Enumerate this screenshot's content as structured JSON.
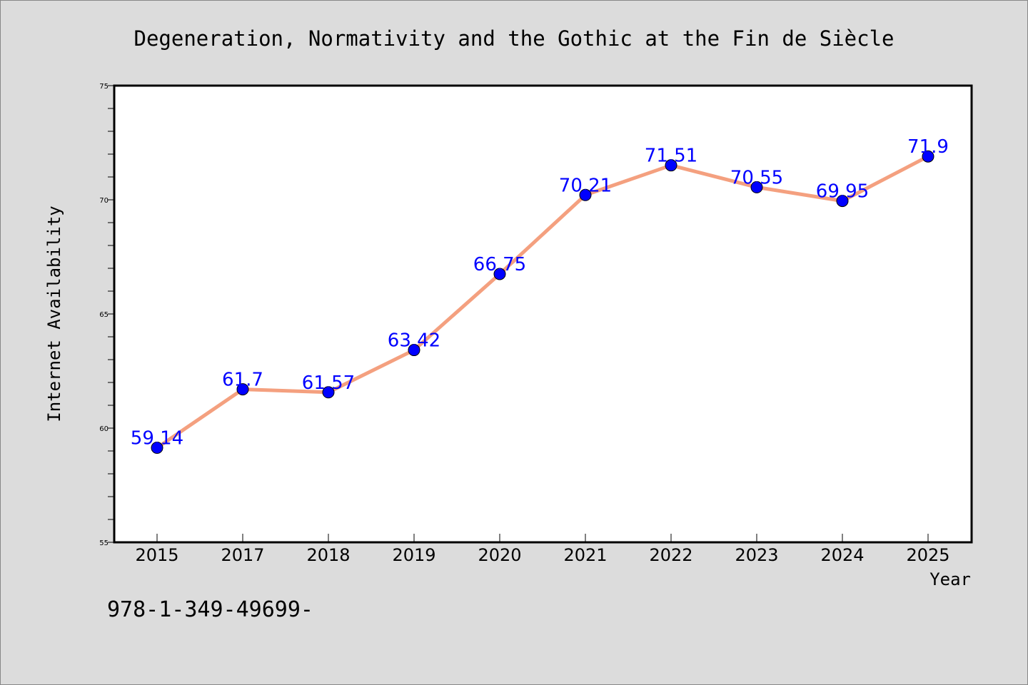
{
  "chart_data": {
    "type": "line",
    "title": "Degeneration, Normativity and the Gothic at the Fin de Siècle",
    "xlabel": "Year",
    "ylabel": "Internet Availability",
    "categories": [
      "2015",
      "2017",
      "2018",
      "2019",
      "2020",
      "2021",
      "2022",
      "2023",
      "2024",
      "2025"
    ],
    "values": [
      59.14,
      61.7,
      61.57,
      63.42,
      66.75,
      70.21,
      71.51,
      70.55,
      69.95,
      71.9
    ],
    "data_labels": [
      "59.14",
      "61.7",
      "61.57",
      "63.42",
      "66.75",
      "70.21",
      "71.51",
      "70.55",
      "69.95",
      "71.9"
    ],
    "ylim": [
      55,
      75
    ],
    "yticks": [
      55,
      60,
      65,
      70,
      75
    ],
    "ytick_labels": [
      "55",
      "60",
      "65",
      "70",
      "75"
    ],
    "grid": false,
    "line_color": "#f4a07f",
    "marker_color": "#0000ff",
    "label_color": "#0000ff"
  },
  "footnote": "978-1-349-49699-"
}
